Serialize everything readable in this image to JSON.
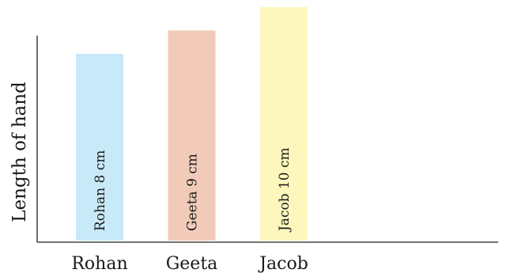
{
  "chart_data": {
    "type": "bar",
    "ylabel": "Length of hand",
    "xlabel": "",
    "categories": [
      "Rohan",
      "Geeta",
      "Jacob"
    ],
    "values": [
      8,
      9,
      10
    ],
    "bar_labels": [
      "Rohan 8 cm",
      "Geeta 9 cm",
      "Jacob 10 cm"
    ],
    "bar_colors": [
      "#c8e9f8",
      "#f1cbb8",
      "#fdf7bd"
    ],
    "ylim": [
      0,
      10
    ],
    "grid": false
  }
}
